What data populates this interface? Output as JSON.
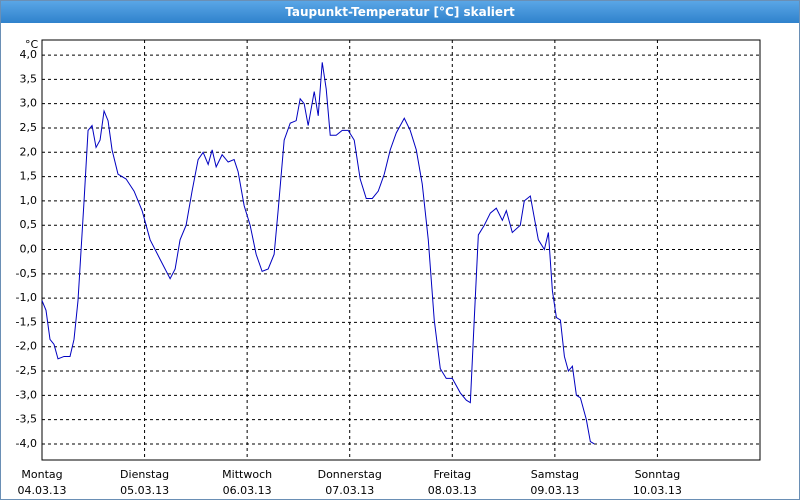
{
  "chart_data": {
    "type": "line",
    "title": "Taupunkt-Temperatur [°C] skaliert",
    "y_unit": "°C",
    "xlim": [
      0,
      7
    ],
    "xticks": [
      {
        "value": 0,
        "label": "Montag"
      },
      {
        "value": 1,
        "label": "Dienstag"
      },
      {
        "value": 2,
        "label": "Mittwoch"
      },
      {
        "value": 3,
        "label": "Donnerstag"
      },
      {
        "value": 4,
        "label": "Freitag"
      },
      {
        "value": 5,
        "label": "Samstag"
      },
      {
        "value": 6,
        "label": "Sonntag"
      }
    ],
    "xtick_dates": [
      "04.03.13",
      "05.03.13",
      "06.03.13",
      "07.03.13",
      "08.03.13",
      "09.03.13",
      "10.03.13"
    ],
    "ylim": [
      -4.33,
      4.31
    ],
    "yticks": [
      {
        "value": 4,
        "label": "4,0"
      },
      {
        "value": 3.5,
        "label": "3,5"
      },
      {
        "value": 3,
        "label": "3,0"
      },
      {
        "value": 2.5,
        "label": "2,5"
      },
      {
        "value": 2,
        "label": "2,0"
      },
      {
        "value": 1.5,
        "label": "1,5"
      },
      {
        "value": 1,
        "label": "1,0"
      },
      {
        "value": 0.5,
        "label": "0,5"
      },
      {
        "value": 0,
        "label": "0,0"
      },
      {
        "value": -0.5,
        "label": "-0,5"
      },
      {
        "value": -1,
        "label": "-1,0"
      },
      {
        "value": -1.5,
        "label": "-1,5"
      },
      {
        "value": -2,
        "label": "-2,0"
      },
      {
        "value": -2.5,
        "label": "-2,5"
      },
      {
        "value": -3,
        "label": "-3,0"
      },
      {
        "value": -3.5,
        "label": "-3,5"
      },
      {
        "value": -4,
        "label": "-4,0"
      }
    ],
    "grid": true,
    "series": [
      {
        "color": "#0000c0",
        "x": [
          0,
          0.039,
          0.078,
          0.117,
          0.156,
          0.215,
          0.273,
          0.312,
          0.351,
          0.41,
          0.449,
          0.488,
          0.527,
          0.566,
          0.605,
          0.644,
          0.683,
          0.741,
          0.82,
          0.898,
          0.976,
          1.054,
          1.151,
          1.249,
          1.298,
          1.346,
          1.405,
          1.463,
          1.522,
          1.571,
          1.62,
          1.659,
          1.698,
          1.756,
          1.815,
          1.873,
          1.912,
          1.971,
          2.029,
          2.088,
          2.146,
          2.205,
          2.263,
          2.302,
          2.361,
          2.42,
          2.478,
          2.517,
          2.556,
          2.595,
          2.654,
          2.693,
          2.732,
          2.771,
          2.81,
          2.868,
          2.927,
          2.985,
          3.044,
          3.102,
          3.161,
          3.22,
          3.278,
          3.337,
          3.395,
          3.454,
          3.532,
          3.59,
          3.649,
          3.707,
          3.766,
          3.824,
          3.883,
          3.941,
          4.0,
          4.078,
          4.137,
          4.176,
          4.215,
          4.254,
          4.312,
          4.371,
          4.429,
          4.488,
          4.527,
          4.585,
          4.663,
          4.702,
          4.761,
          4.8,
          4.839,
          4.898,
          4.937,
          4.976,
          5.015,
          5.054,
          5.093,
          5.132,
          5.171,
          5.21,
          5.249,
          5.307,
          5.346,
          5.385
        ],
        "values": [
          -1.05,
          -1.25,
          -1.85,
          -1.95,
          -2.25,
          -2.2,
          -2.2,
          -1.85,
          -1.05,
          1.0,
          2.45,
          2.55,
          2.1,
          2.25,
          2.85,
          2.65,
          2.05,
          1.55,
          1.45,
          1.2,
          0.8,
          0.2,
          -0.2,
          -0.6,
          -0.4,
          0.2,
          0.5,
          1.2,
          1.85,
          2.0,
          1.75,
          2.05,
          1.7,
          1.95,
          1.8,
          1.85,
          1.6,
          0.9,
          0.5,
          -0.1,
          -0.45,
          -0.4,
          -0.1,
          0.8,
          2.25,
          2.6,
          2.65,
          3.1,
          3.0,
          2.55,
          3.25,
          2.75,
          3.85,
          3.3,
          2.35,
          2.35,
          2.45,
          2.45,
          2.25,
          1.45,
          1.05,
          1.05,
          1.2,
          1.55,
          2.05,
          2.4,
          2.7,
          2.45,
          2.05,
          1.35,
          0.2,
          -1.45,
          -2.45,
          -2.65,
          -2.65,
          -2.95,
          -3.1,
          -3.15,
          -1.4,
          0.3,
          0.5,
          0.75,
          0.85,
          0.6,
          0.8,
          0.35,
          0.5,
          1.0,
          1.1,
          0.65,
          0.2,
          0.0,
          0.35,
          -0.85,
          -1.4,
          -1.45,
          -2.2,
          -2.5,
          -2.4,
          -3.0,
          -3.05,
          -3.5,
          -3.95,
          -4.0
        ]
      }
    ]
  }
}
